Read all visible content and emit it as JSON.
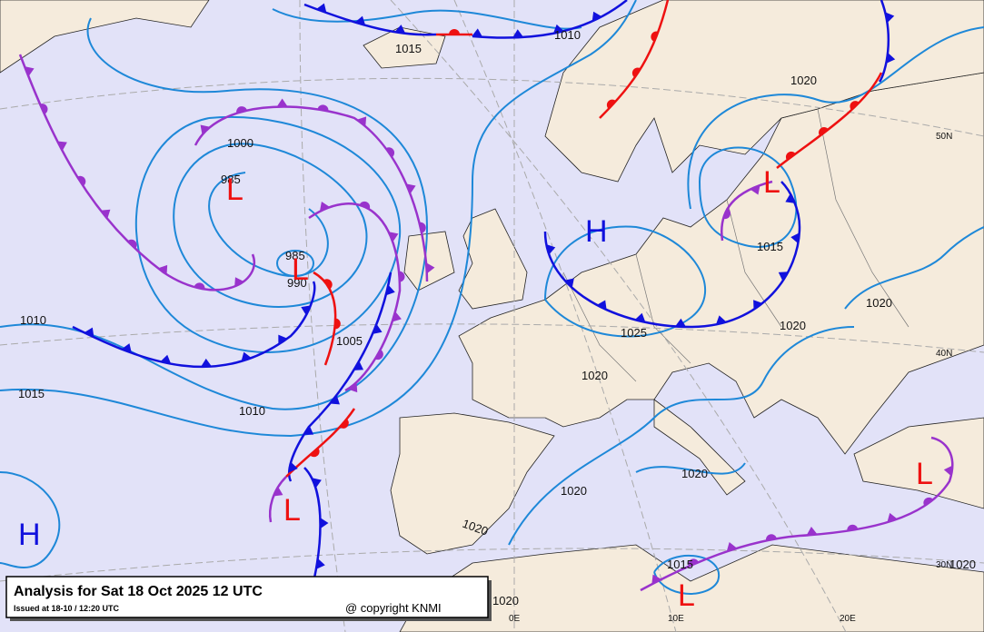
{
  "header": {
    "title": "Analysis for Sat 18 Oct 2025 12 UTC",
    "issued": "Issued at 18-10 / 12:20 UTC",
    "copyright": "@ copyright KNMI"
  },
  "isobar_labels": [
    "1015",
    "1010",
    "1000",
    "985",
    "985",
    "990",
    "1005",
    "1010",
    "1015",
    "1010",
    "1020",
    "1015",
    "1020",
    "1020",
    "1025",
    "1020",
    "1020",
    "1020",
    "1020",
    "1015",
    "1020",
    "1020"
  ],
  "graticule_labels": [
    "50N",
    "40N",
    "30N",
    "0E",
    "10E",
    "20E"
  ],
  "pressure_centers": [
    "L",
    "L",
    "L",
    "H",
    "L",
    "L",
    "H",
    "L"
  ]
}
